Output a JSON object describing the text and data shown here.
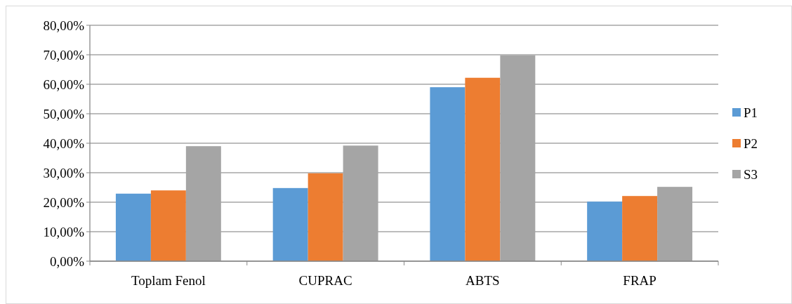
{
  "chart_data": {
    "type": "bar",
    "categories": [
      "Toplam Fenol",
      "CUPRAC",
      "ABTS",
      "FRAP"
    ],
    "series": [
      {
        "name": "P1",
        "color": "#5b9bd5",
        "values": [
          22.9,
          24.8,
          59.0,
          20.2
        ]
      },
      {
        "name": "P2",
        "color": "#ed7d31",
        "values": [
          24.0,
          29.8,
          62.2,
          22.1
        ]
      },
      {
        "name": "S3",
        "color": "#a5a5a5",
        "values": [
          39.0,
          39.2,
          69.8,
          25.2
        ]
      }
    ],
    "ylim": [
      0,
      80
    ],
    "yticks": [
      {
        "value": 0,
        "label": "0,00%"
      },
      {
        "value": 10,
        "label": "10,00%"
      },
      {
        "value": 20,
        "label": "20,00%"
      },
      {
        "value": 30,
        "label": "30,00%"
      },
      {
        "value": 40,
        "label": "40,00%"
      },
      {
        "value": 50,
        "label": "50,00%"
      },
      {
        "value": 60,
        "label": "60,00%"
      },
      {
        "value": 70,
        "label": "70,00%"
      },
      {
        "value": 80,
        "label": "80,00%"
      }
    ],
    "grid": "y",
    "legend": "right"
  }
}
